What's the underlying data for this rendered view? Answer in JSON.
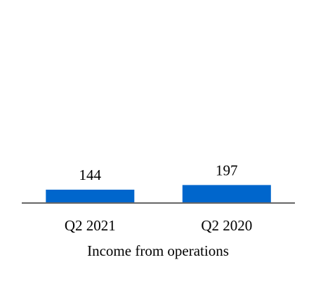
{
  "chart_data": {
    "type": "bar",
    "categories": [
      "Q2 2021",
      "Q2 2020"
    ],
    "values": [
      144,
      197
    ],
    "title": "",
    "xlabel": "Income from operations",
    "ylabel": "",
    "ylim": [
      0,
      1000
    ],
    "grid": false,
    "legend": "none",
    "data_labels": [
      "144",
      "197"
    ]
  },
  "colors": {
    "bar": "#0066cc",
    "axis": "#666666"
  }
}
